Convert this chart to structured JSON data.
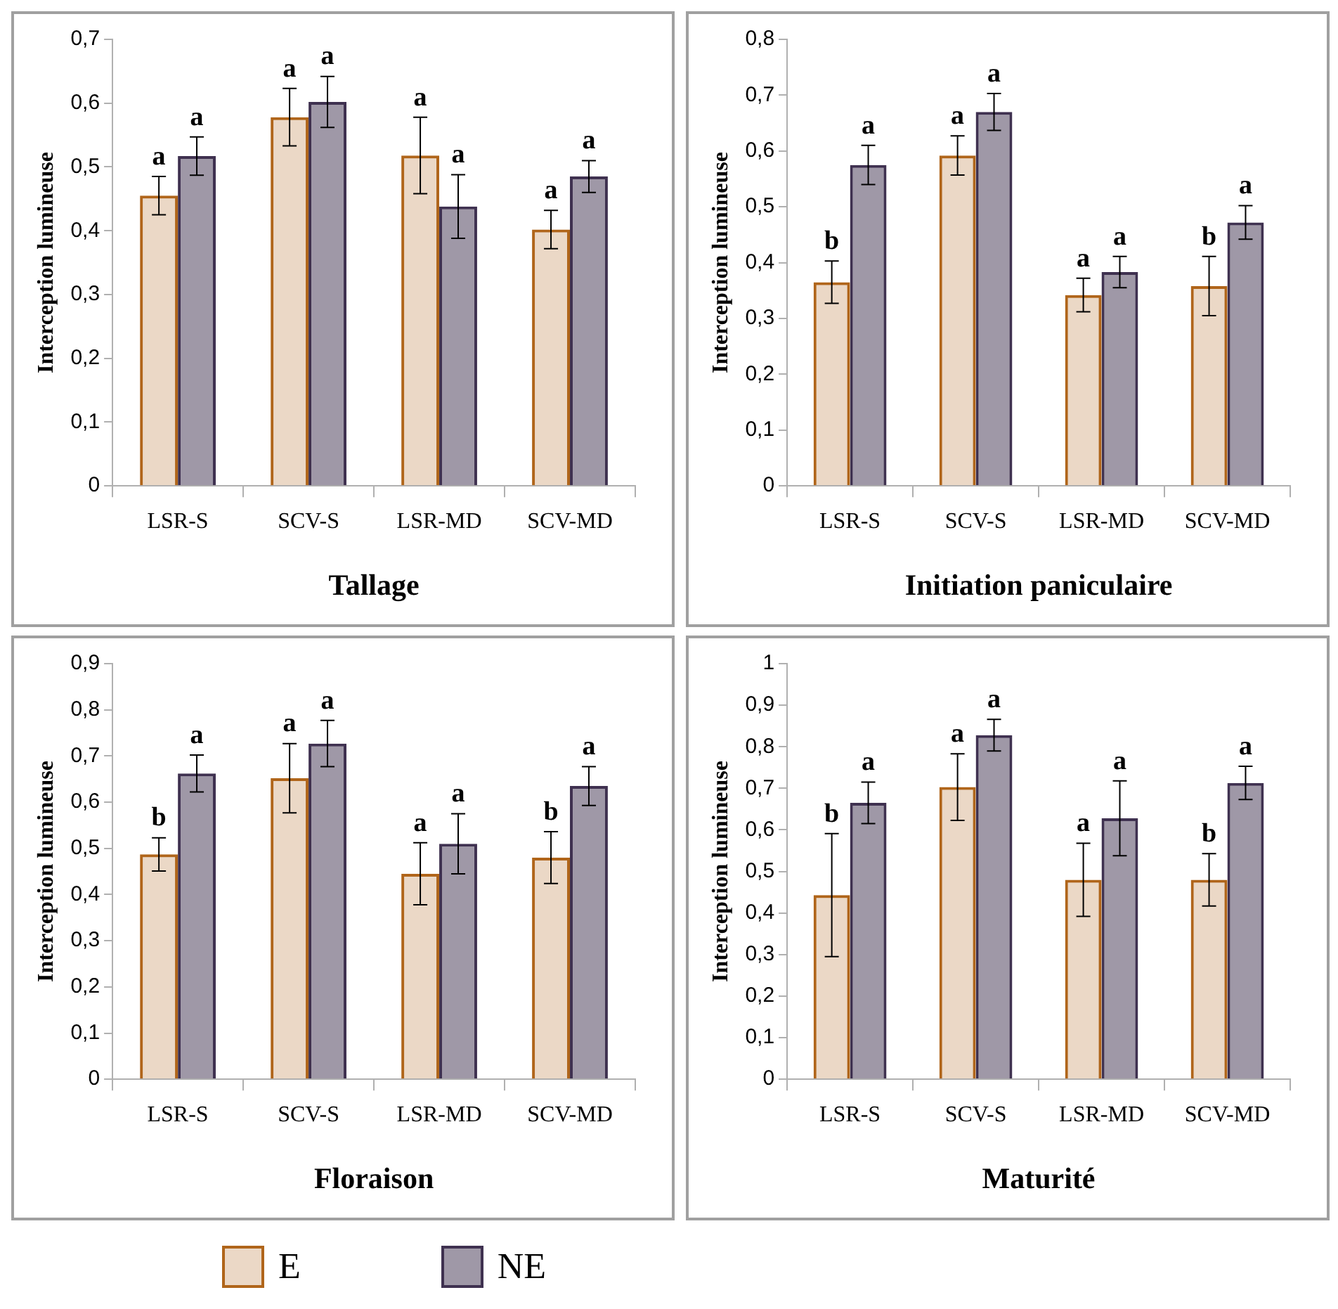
{
  "chart_data": [
    {
      "type": "bar",
      "xlabel": "Tallage",
      "ylabel": "Interception lumineuse",
      "categories": [
        "LSR-S",
        "SCV-S",
        "LSR-MD",
        "SCV-MD"
      ],
      "legend": "bottom",
      "ylim": [
        0,
        0.7
      ],
      "yticks": [
        {
          "value": 0,
          "label": "0"
        },
        {
          "value": 0.1,
          "label": "0,1"
        },
        {
          "value": 0.2,
          "label": "0,2"
        },
        {
          "value": 0.3,
          "label": "0,3"
        },
        {
          "value": 0.4,
          "label": "0,4"
        },
        {
          "value": 0.5,
          "label": "0,5"
        },
        {
          "value": 0.6,
          "label": "0,6"
        },
        {
          "value": 0.7,
          "label": "0,7"
        }
      ],
      "grid": false,
      "series": [
        {
          "name": "E",
          "color": "#b0651a",
          "values": [
            0.455,
            0.578,
            0.518,
            0.402
          ],
          "errors": [
            0.03,
            0.045,
            0.06,
            0.03
          ],
          "value_labels": [
            "a",
            "a",
            "a",
            "a"
          ]
        },
        {
          "name": "NE",
          "color": "#3f3150",
          "values": [
            0.517,
            0.602,
            0.438,
            0.485
          ],
          "errors": [
            0.03,
            0.04,
            0.05,
            0.025
          ],
          "value_labels": [
            "a",
            "a",
            "a",
            "a"
          ]
        }
      ]
    },
    {
      "type": "bar",
      "xlabel": "Initiation paniculaire",
      "ylabel": "Interception lumineuse",
      "categories": [
        "LSR-S",
        "SCV-S",
        "LSR-MD",
        "SCV-MD"
      ],
      "ylim": [
        0,
        0.8
      ],
      "yticks": [
        {
          "value": 0,
          "label": "0"
        },
        {
          "value": 0.1,
          "label": "0,1"
        },
        {
          "value": 0.2,
          "label": "0,2"
        },
        {
          "value": 0.3,
          "label": "0,3"
        },
        {
          "value": 0.4,
          "label": "0,4"
        },
        {
          "value": 0.5,
          "label": "0,5"
        },
        {
          "value": 0.6,
          "label": "0,6"
        },
        {
          "value": 0.7,
          "label": "0,7"
        },
        {
          "value": 0.8,
          "label": "0,8"
        }
      ],
      "grid": false,
      "series": [
        {
          "color": "#b0651a",
          "values": [
            0.365,
            0.592,
            0.342,
            0.358
          ],
          "errors": [
            0.038,
            0.035,
            0.03,
            0.053
          ],
          "value_labels": [
            "b",
            "a",
            "a",
            "b"
          ]
        },
        {
          "color": "#3f3150",
          "values": [
            0.575,
            0.67,
            0.383,
            0.472
          ],
          "errors": [
            0.035,
            0.033,
            0.028,
            0.03
          ],
          "value_labels": [
            "a",
            "a",
            "a",
            "a"
          ]
        }
      ]
    },
    {
      "type": "bar",
      "xlabel": "Floraison",
      "ylabel": "Interception lumineuse",
      "categories": [
        "LSR-S",
        "SCV-S",
        "LSR-MD",
        "SCV-MD"
      ],
      "ylim": [
        0,
        0.9
      ],
      "yticks": [
        {
          "value": 0,
          "label": "0"
        },
        {
          "value": 0.1,
          "label": "0,1"
        },
        {
          "value": 0.2,
          "label": "0,2"
        },
        {
          "value": 0.3,
          "label": "0,3"
        },
        {
          "value": 0.4,
          "label": "0,4"
        },
        {
          "value": 0.5,
          "label": "0,5"
        },
        {
          "value": 0.6,
          "label": "0,6"
        },
        {
          "value": 0.7,
          "label": "0,7"
        },
        {
          "value": 0.8,
          "label": "0,8"
        },
        {
          "value": 0.9,
          "label": "0,9"
        }
      ],
      "grid": false,
      "series": [
        {
          "color": "#b0651a",
          "values": [
            0.487,
            0.652,
            0.445,
            0.48
          ],
          "errors": [
            0.036,
            0.075,
            0.067,
            0.056
          ],
          "value_labels": [
            "b",
            "a",
            "a",
            "b"
          ]
        },
        {
          "color": "#3f3150",
          "values": [
            0.662,
            0.727,
            0.51,
            0.635
          ],
          "errors": [
            0.04,
            0.05,
            0.065,
            0.042
          ],
          "value_labels": [
            "a",
            "a",
            "a",
            "a"
          ]
        }
      ]
    },
    {
      "type": "bar",
      "xlabel": "Maturité",
      "ylabel": "Interception lumineuse",
      "categories": [
        "LSR-S",
        "SCV-S",
        "LSR-MD",
        "SCV-MD"
      ],
      "ylim": [
        0,
        1
      ],
      "yticks": [
        {
          "value": 0,
          "label": "0"
        },
        {
          "value": 0.1,
          "label": "0,1"
        },
        {
          "value": 0.2,
          "label": "0,2"
        },
        {
          "value": 0.3,
          "label": "0,3"
        },
        {
          "value": 0.4,
          "label": "0,4"
        },
        {
          "value": 0.5,
          "label": "0,5"
        },
        {
          "value": 0.6,
          "label": "0,6"
        },
        {
          "value": 0.7,
          "label": "0,7"
        },
        {
          "value": 0.8,
          "label": "0,8"
        },
        {
          "value": 0.9,
          "label": "0,9"
        },
        {
          "value": 1,
          "label": "1"
        }
      ],
      "grid": false,
      "series": [
        {
          "color": "#b0651a",
          "values": [
            0.443,
            0.703,
            0.48,
            0.48
          ],
          "errors": [
            0.148,
            0.08,
            0.088,
            0.063
          ],
          "value_labels": [
            "b",
            "a",
            "a",
            "b"
          ]
        },
        {
          "color": "#3f3150",
          "values": [
            0.665,
            0.828,
            0.628,
            0.713
          ],
          "errors": [
            0.05,
            0.038,
            0.09,
            0.04
          ],
          "value_labels": [
            "a",
            "a",
            "a",
            "a"
          ]
        }
      ]
    }
  ]
}
